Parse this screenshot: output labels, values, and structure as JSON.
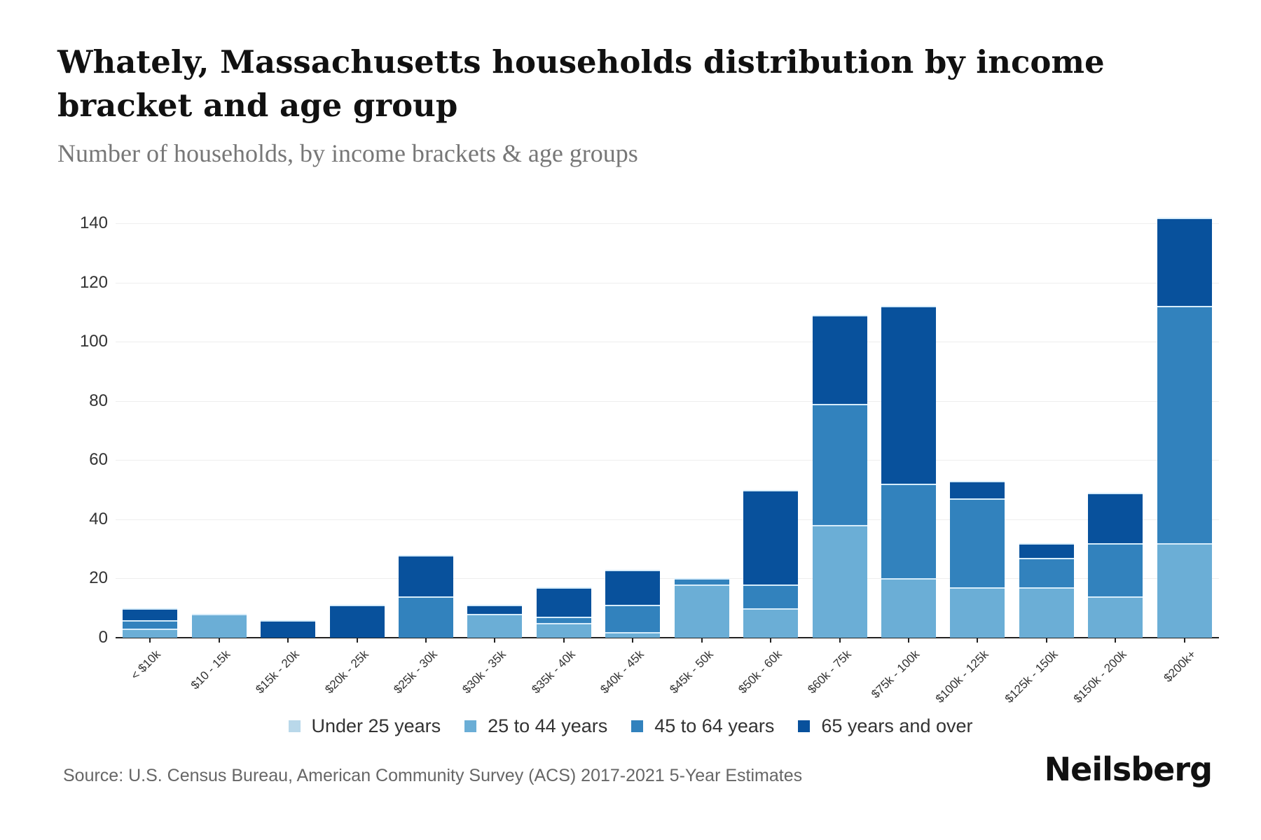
{
  "title": "Whately, Massachusetts households distribution by income bracket and age group",
  "subtitle": "Number of households, by income brackets & age groups",
  "source": "Source: U.S. Census Bureau, American Community Survey (ACS) 2017-2021 5-Year Estimates",
  "brand": "Neilsberg",
  "colors": {
    "under_25": "#b9d8ea",
    "age_25_44": "#6baed6",
    "age_45_64": "#3282bd",
    "age_65_over": "#08519c"
  },
  "chart_data": {
    "type": "bar",
    "stacked": true,
    "title": "Whately, Massachusetts households distribution by income bracket and age group",
    "subtitle": "Number of households, by income brackets & age groups",
    "xlabel": "",
    "ylabel": "",
    "ylim": [
      0,
      145
    ],
    "yticks": [
      0,
      20,
      40,
      60,
      80,
      100,
      120,
      140
    ],
    "grid": true,
    "legend_position": "bottom",
    "categories": [
      "< $10k",
      "$10 - 15k",
      "$15k - 20k",
      "$20k - 25k",
      "$25k - 30k",
      "$30k - 35k",
      "$35k - 40k",
      "$40k - 45k",
      "$45k - 50k",
      "$50k - 60k",
      "$60k - 75k",
      "$75k - 100k",
      "$100k - 125k",
      "$125k - 150k",
      "$150k - 200k",
      "$200k+"
    ],
    "series": [
      {
        "name": "Under 25 years",
        "color": "#b9d8ea",
        "values": [
          0,
          0,
          0,
          0,
          0,
          0,
          0,
          0,
          0,
          0,
          0,
          0,
          0,
          0,
          0,
          0
        ]
      },
      {
        "name": "25 to 44 years",
        "color": "#6baed6",
        "values": [
          3,
          8,
          0,
          0,
          0,
          8,
          5,
          2,
          18,
          10,
          38,
          20,
          17,
          17,
          14,
          32
        ]
      },
      {
        "name": "45 to 64 years",
        "color": "#3282bd",
        "values": [
          3,
          0,
          0,
          0,
          14,
          0,
          2,
          9,
          2,
          8,
          41,
          32,
          30,
          10,
          18,
          80
        ]
      },
      {
        "name": "65 years and over",
        "color": "#08519c",
        "values": [
          4,
          0,
          6,
          11,
          14,
          3,
          10,
          12,
          0,
          32,
          30,
          60,
          6,
          5,
          17,
          30
        ]
      }
    ],
    "totals": [
      10,
      8,
      6,
      11,
      28,
      11,
      17,
      23,
      20,
      50,
      109,
      112,
      53,
      32,
      49,
      142
    ]
  }
}
